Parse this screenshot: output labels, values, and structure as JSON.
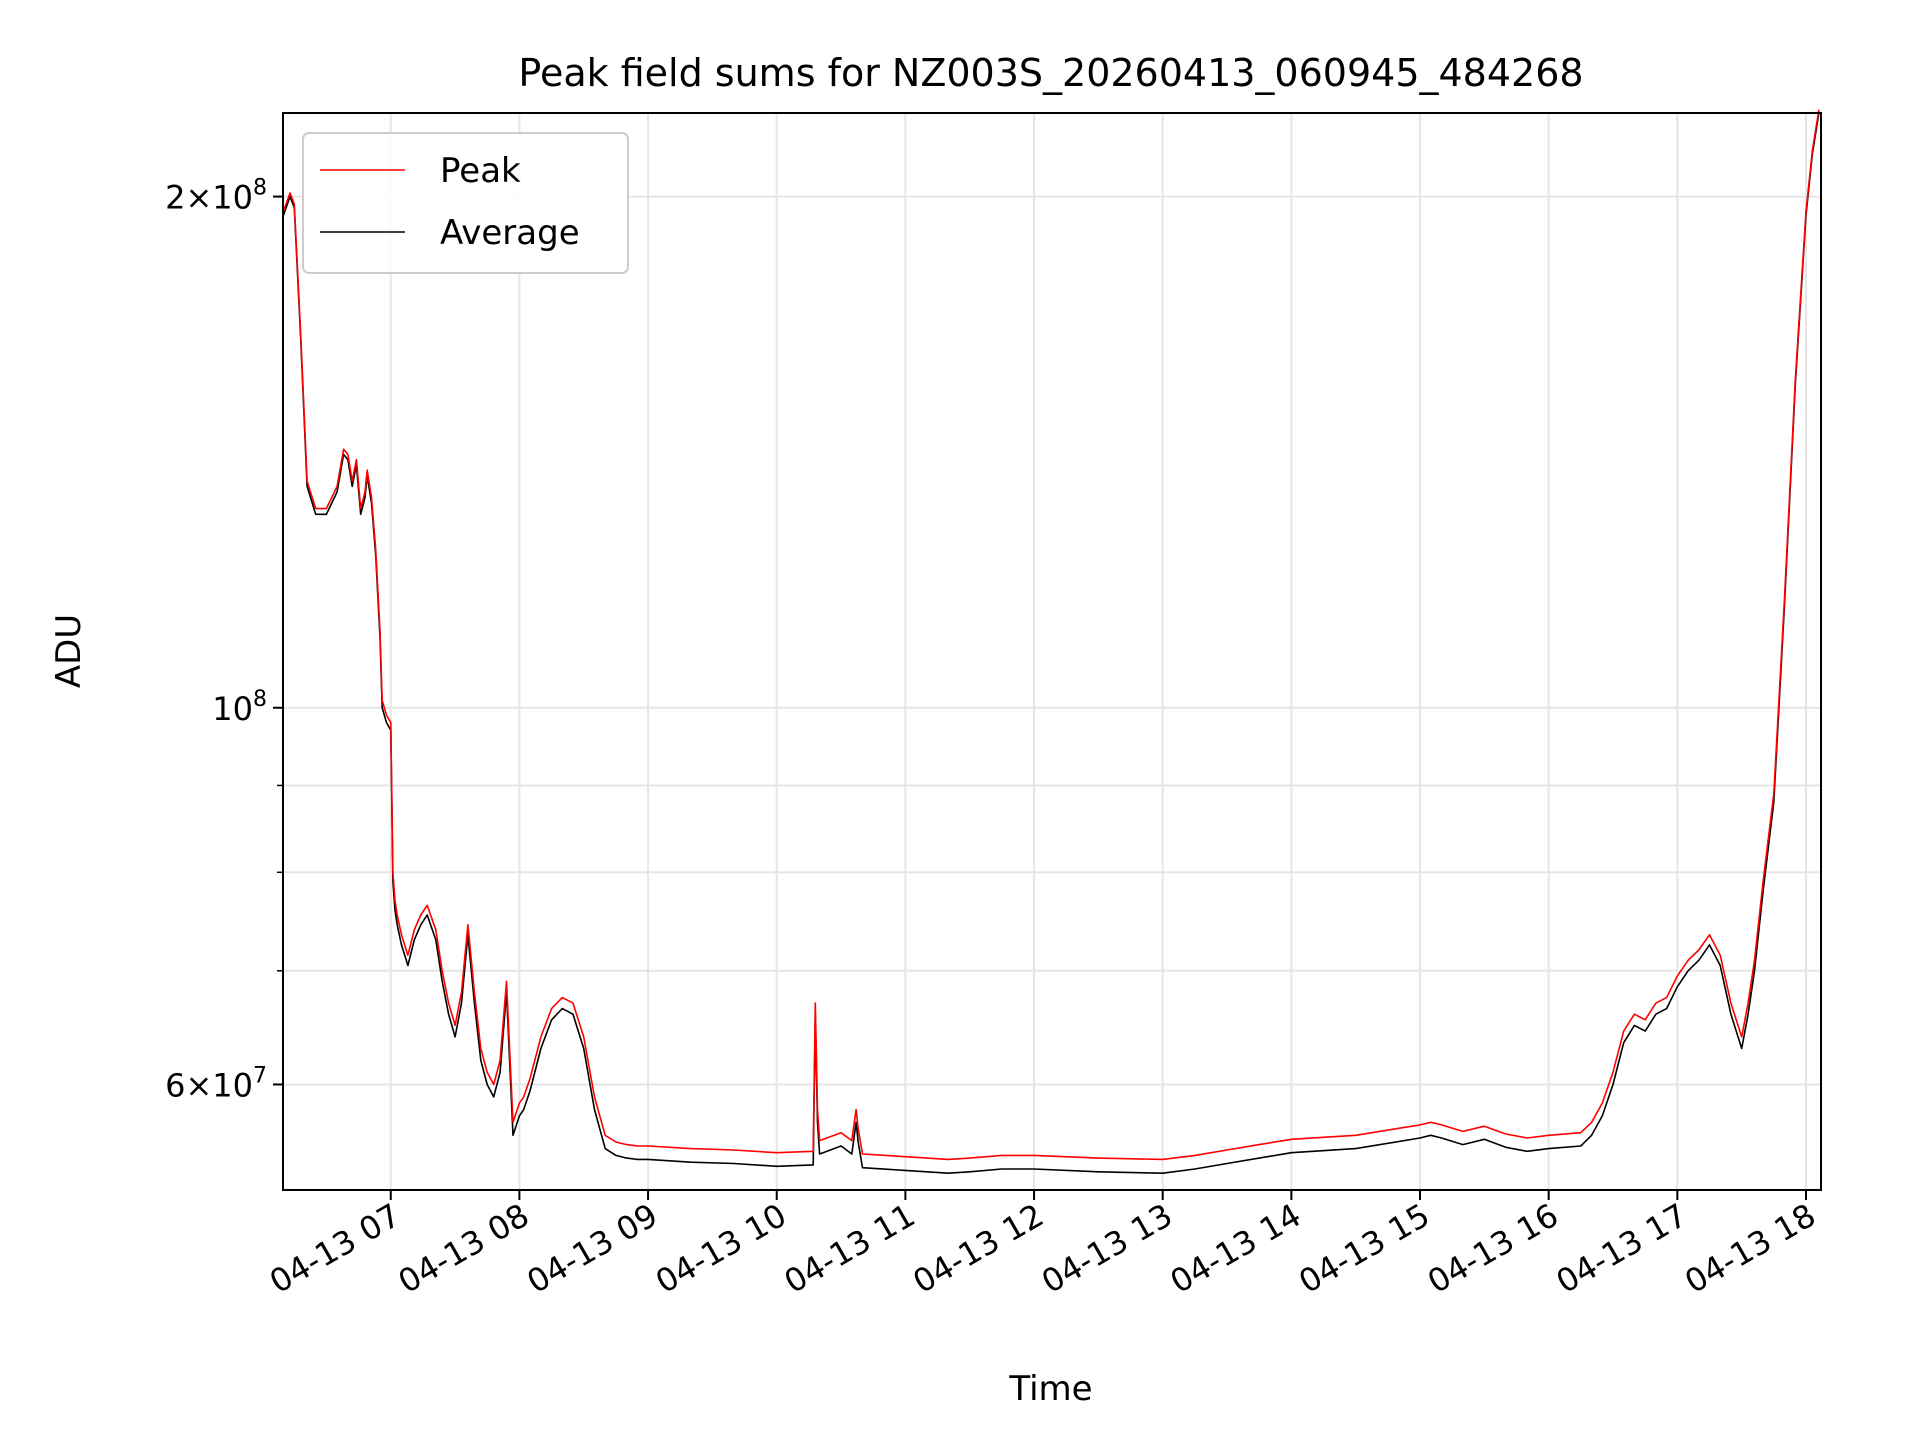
{
  "chart_data": {
    "type": "line",
    "title": "Peak field sums for NZ003S_20260413_060945_484268",
    "xlabel": "Time",
    "ylabel": "ADU",
    "y_scale": "log",
    "grid": true,
    "legend_position": "upper-left",
    "xlim": [
      "2026-04-13 06:09:45",
      "2026-04-13 18:07:00"
    ],
    "ylim": [
      52000000,
      224000000
    ],
    "x_ticks": [
      "04-13 07",
      "04-13 08",
      "04-13 09",
      "04-13 10",
      "04-13 11",
      "04-13 12",
      "04-13 13",
      "04-13 14",
      "04-13 15",
      "04-13 16",
      "04-13 17",
      "04-13 18"
    ],
    "y_ticks": [
      {
        "value": 200000000,
        "base": "2×10",
        "exp": "8"
      },
      {
        "value": 100000000,
        "base": "10",
        "exp": "8"
      },
      {
        "value": 60000000,
        "base": "6×10",
        "exp": "7"
      }
    ],
    "series": [
      {
        "name": "Average",
        "color": "#000000",
        "x": [
          "2026-04-13 06:10",
          "2026-04-13 06:13",
          "2026-04-13 06:15",
          "2026-04-13 06:18",
          "2026-04-13 06:21",
          "2026-04-13 06:25",
          "2026-04-13 06:30",
          "2026-04-13 06:35",
          "2026-04-13 06:38",
          "2026-04-13 06:40",
          "2026-04-13 06:42",
          "2026-04-13 06:44",
          "2026-04-13 06:46",
          "2026-04-13 06:48",
          "2026-04-13 06:49",
          "2026-04-13 06:51",
          "2026-04-13 06:53",
          "2026-04-13 06:55",
          "2026-04-13 06:56",
          "2026-04-13 06:58",
          "2026-04-13 07:00",
          "2026-04-13 07:01",
          "2026-04-13 07:02",
          "2026-04-13 07:03",
          "2026-04-13 07:05",
          "2026-04-13 07:08",
          "2026-04-13 07:11",
          "2026-04-13 07:14",
          "2026-04-13 07:17",
          "2026-04-13 07:21",
          "2026-04-13 07:24",
          "2026-04-13 07:27",
          "2026-04-13 07:30",
          "2026-04-13 07:33",
          "2026-04-13 07:36",
          "2026-04-13 07:39",
          "2026-04-13 07:42",
          "2026-04-13 07:45",
          "2026-04-13 07:48",
          "2026-04-13 07:51",
          "2026-04-13 07:54",
          "2026-04-13 07:57",
          "2026-04-13 08:00",
          "2026-04-13 08:02",
          "2026-04-13 08:05",
          "2026-04-13 08:10",
          "2026-04-13 08:15",
          "2026-04-13 08:20",
          "2026-04-13 08:25",
          "2026-04-13 08:30",
          "2026-04-13 08:35",
          "2026-04-13 08:40",
          "2026-04-13 08:45",
          "2026-04-13 08:50",
          "2026-04-13 08:55",
          "2026-04-13 09:00",
          "2026-04-13 09:20",
          "2026-04-13 09:40",
          "2026-04-13 10:00",
          "2026-04-13 10:17",
          "2026-04-13 10:18",
          "2026-04-13 10:19",
          "2026-04-13 10:20",
          "2026-04-13 10:30",
          "2026-04-13 10:35",
          "2026-04-13 10:37",
          "2026-04-13 10:38",
          "2026-04-13 10:40",
          "2026-04-13 11:00",
          "2026-04-13 11:20",
          "2026-04-13 11:30",
          "2026-04-13 11:45",
          "2026-04-13 12:00",
          "2026-04-13 12:30",
          "2026-04-13 13:00",
          "2026-04-13 13:15",
          "2026-04-13 13:30",
          "2026-04-13 13:45",
          "2026-04-13 14:00",
          "2026-04-13 14:30",
          "2026-04-13 15:00",
          "2026-04-13 15:05",
          "2026-04-13 15:10",
          "2026-04-13 15:20",
          "2026-04-13 15:30",
          "2026-04-13 15:40",
          "2026-04-13 15:50",
          "2026-04-13 16:00",
          "2026-04-13 16:15",
          "2026-04-13 16:20",
          "2026-04-13 16:25",
          "2026-04-13 16:30",
          "2026-04-13 16:35",
          "2026-04-13 16:40",
          "2026-04-13 16:45",
          "2026-04-13 16:50",
          "2026-04-13 16:55",
          "2026-04-13 17:00",
          "2026-04-13 17:05",
          "2026-04-13 17:10",
          "2026-04-13 17:15",
          "2026-04-13 17:20",
          "2026-04-13 17:25",
          "2026-04-13 17:30",
          "2026-04-13 17:33",
          "2026-04-13 17:36",
          "2026-04-13 17:40",
          "2026-04-13 17:45",
          "2026-04-13 17:50",
          "2026-04-13 17:55",
          "2026-04-13 18:00",
          "2026-04-13 18:03",
          "2026-04-13 18:06"
        ],
        "values": [
          195000000,
          200000000,
          197000000,
          165000000,
          135000000,
          130000000,
          130000000,
          134000000,
          141000000,
          140000000,
          135000000,
          139000000,
          130000000,
          133000000,
          137000000,
          132000000,
          123000000,
          110000000,
          100000000,
          98000000,
          97000000,
          79000000,
          76000000,
          74500000,
          72500000,
          70500000,
          73000000,
          74500000,
          75500000,
          73000000,
          69000000,
          66000000,
          64000000,
          67000000,
          73500000,
          67000000,
          62000000,
          60000000,
          59000000,
          61000000,
          68000000,
          56000000,
          57500000,
          58000000,
          59500000,
          63000000,
          65500000,
          66500000,
          66000000,
          63000000,
          58000000,
          55000000,
          54500000,
          54300000,
          54200000,
          54200000,
          54000000,
          53900000,
          53700000,
          53800000,
          66000000,
          57000000,
          54600000,
          55200000,
          54600000,
          57000000,
          55500000,
          53600000,
          53400000,
          53200000,
          53300000,
          53500000,
          53500000,
          53300000,
          53200000,
          53500000,
          53900000,
          54300000,
          54700000,
          55000000,
          55800000,
          56000000,
          55800000,
          55300000,
          55700000,
          55100000,
          54800000,
          55000000,
          55200000,
          56000000,
          57500000,
          60000000,
          63500000,
          65000000,
          64500000,
          66000000,
          66500000,
          68500000,
          70000000,
          71000000,
          72500000,
          70500000,
          66000000,
          63000000,
          66000000,
          70000000,
          78000000,
          88000000,
          115000000,
          155000000,
          195000000,
          212000000,
          224000000
        ]
      },
      {
        "name": "Peak",
        "color": "#ff0000",
        "x": [
          "2026-04-13 06:10",
          "2026-04-13 06:13",
          "2026-04-13 06:15",
          "2026-04-13 06:18",
          "2026-04-13 06:21",
          "2026-04-13 06:25",
          "2026-04-13 06:30",
          "2026-04-13 06:35",
          "2026-04-13 06:38",
          "2026-04-13 06:40",
          "2026-04-13 06:42",
          "2026-04-13 06:44",
          "2026-04-13 06:46",
          "2026-04-13 06:48",
          "2026-04-13 06:49",
          "2026-04-13 06:51",
          "2026-04-13 06:53",
          "2026-04-13 06:55",
          "2026-04-13 06:56",
          "2026-04-13 06:58",
          "2026-04-13 07:00",
          "2026-04-13 07:01",
          "2026-04-13 07:02",
          "2026-04-13 07:03",
          "2026-04-13 07:05",
          "2026-04-13 07:08",
          "2026-04-13 07:11",
          "2026-04-13 07:14",
          "2026-04-13 07:17",
          "2026-04-13 07:21",
          "2026-04-13 07:24",
          "2026-04-13 07:27",
          "2026-04-13 07:30",
          "2026-04-13 07:33",
          "2026-04-13 07:36",
          "2026-04-13 07:39",
          "2026-04-13 07:42",
          "2026-04-13 07:45",
          "2026-04-13 07:48",
          "2026-04-13 07:51",
          "2026-04-13 07:54",
          "2026-04-13 07:57",
          "2026-04-13 08:00",
          "2026-04-13 08:02",
          "2026-04-13 08:05",
          "2026-04-13 08:10",
          "2026-04-13 08:15",
          "2026-04-13 08:20",
          "2026-04-13 08:25",
          "2026-04-13 08:30",
          "2026-04-13 08:35",
          "2026-04-13 08:40",
          "2026-04-13 08:45",
          "2026-04-13 08:50",
          "2026-04-13 08:55",
          "2026-04-13 09:00",
          "2026-04-13 09:20",
          "2026-04-13 09:40",
          "2026-04-13 10:00",
          "2026-04-13 10:17",
          "2026-04-13 10:18",
          "2026-04-13 10:19",
          "2026-04-13 10:20",
          "2026-04-13 10:30",
          "2026-04-13 10:35",
          "2026-04-13 10:37",
          "2026-04-13 10:38",
          "2026-04-13 10:40",
          "2026-04-13 11:00",
          "2026-04-13 11:20",
          "2026-04-13 11:30",
          "2026-04-13 11:45",
          "2026-04-13 12:00",
          "2026-04-13 12:30",
          "2026-04-13 13:00",
          "2026-04-13 13:15",
          "2026-04-13 13:30",
          "2026-04-13 13:45",
          "2026-04-13 14:00",
          "2026-04-13 14:30",
          "2026-04-13 15:00",
          "2026-04-13 15:05",
          "2026-04-13 15:10",
          "2026-04-13 15:20",
          "2026-04-13 15:30",
          "2026-04-13 15:40",
          "2026-04-13 15:50",
          "2026-04-13 16:00",
          "2026-04-13 16:15",
          "2026-04-13 16:20",
          "2026-04-13 16:25",
          "2026-04-13 16:30",
          "2026-04-13 16:35",
          "2026-04-13 16:40",
          "2026-04-13 16:45",
          "2026-04-13 16:50",
          "2026-04-13 16:55",
          "2026-04-13 17:00",
          "2026-04-13 17:05",
          "2026-04-13 17:10",
          "2026-04-13 17:15",
          "2026-04-13 17:20",
          "2026-04-13 17:25",
          "2026-04-13 17:30",
          "2026-04-13 17:33",
          "2026-04-13 17:36",
          "2026-04-13 17:40",
          "2026-04-13 17:45",
          "2026-04-13 17:50",
          "2026-04-13 17:55",
          "2026-04-13 18:00",
          "2026-04-13 18:03",
          "2026-04-13 18:06"
        ],
        "values": [
          196000000,
          201000000,
          198000000,
          166000000,
          136000000,
          131000000,
          131000000,
          135000000,
          142000000,
          141000000,
          136000000,
          140000000,
          131000000,
          134000000,
          138000000,
          133000000,
          124000000,
          111000000,
          101000000,
          99000000,
          98000000,
          80000000,
          77000000,
          75500000,
          73500000,
          71500000,
          74000000,
          75500000,
          76500000,
          74000000,
          70000000,
          67000000,
          65000000,
          68000000,
          74500000,
          68000000,
          63000000,
          61000000,
          60000000,
          62000000,
          69000000,
          57000000,
          58500000,
          59000000,
          60500000,
          64000000,
          66500000,
          67500000,
          67000000,
          64000000,
          59000000,
          56000000,
          55500000,
          55300000,
          55200000,
          55200000,
          55000000,
          54900000,
          54700000,
          54800000,
          67000000,
          58000000,
          55600000,
          56200000,
          55600000,
          58000000,
          56500000,
          54600000,
          54400000,
          54200000,
          54300000,
          54500000,
          54500000,
          54300000,
          54200000,
          54500000,
          54900000,
          55300000,
          55700000,
          56000000,
          56800000,
          57000000,
          56800000,
          56300000,
          56700000,
          56100000,
          55800000,
          56000000,
          56200000,
          57000000,
          58500000,
          61000000,
          64500000,
          66000000,
          65500000,
          67000000,
          67500000,
          69500000,
          71000000,
          72000000,
          73500000,
          71500000,
          67000000,
          64000000,
          67000000,
          71000000,
          79000000,
          89000000,
          116000000,
          156000000,
          196000000,
          213000000,
          225000000
        ]
      }
    ]
  }
}
